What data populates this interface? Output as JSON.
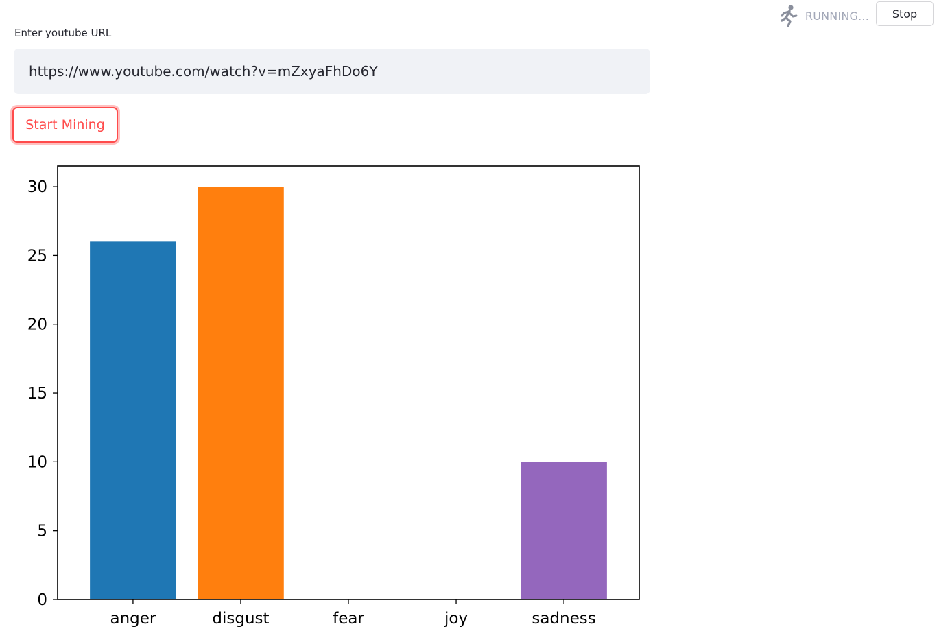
{
  "status": {
    "running_label": "RUNNING...",
    "stop_label": "Stop",
    "running_icon": "running-man-icon"
  },
  "form": {
    "url_label": "Enter youtube URL",
    "url_value": "https://www.youtube.com/watch?v=mZxyaFhDo6Y",
    "submit_label": "Start Mining"
  },
  "chart_data": {
    "type": "bar",
    "categories": [
      "anger",
      "disgust",
      "fear",
      "joy",
      "sadness"
    ],
    "values": [
      26,
      30,
      0,
      0,
      10
    ],
    "colors": [
      "#1f77b4",
      "#ff7f0e",
      "#2ca02c",
      "#d62728",
      "#9467bd"
    ],
    "ylim": [
      0,
      31.5
    ],
    "yticks": [
      0,
      5,
      10,
      15,
      20,
      25,
      30
    ],
    "title": "",
    "xlabel": "",
    "ylabel": "",
    "grid": false
  }
}
